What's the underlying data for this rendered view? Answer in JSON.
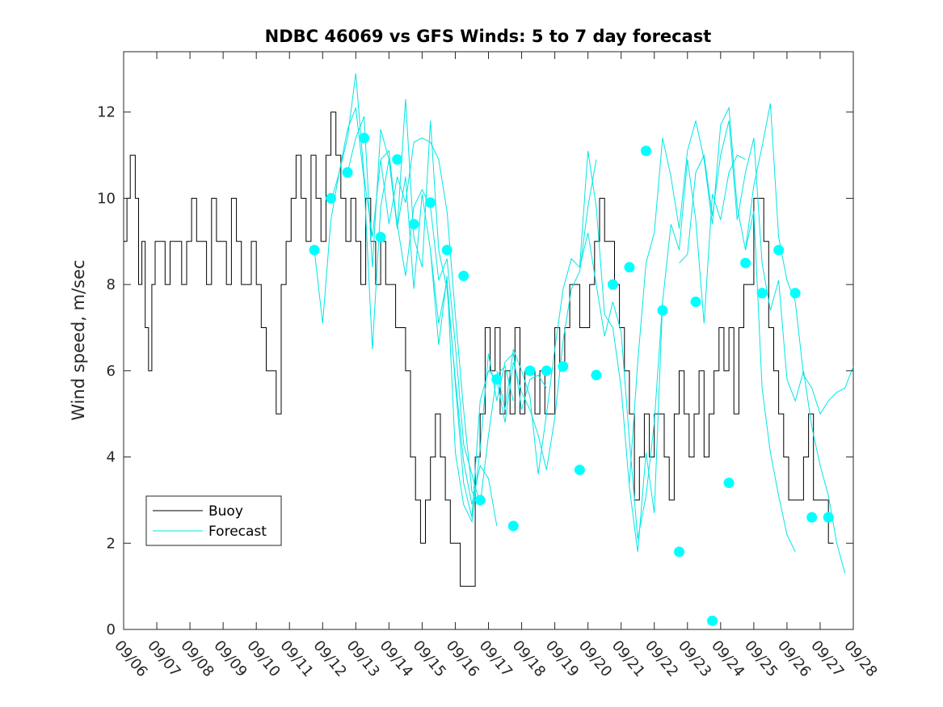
{
  "chart_data": {
    "type": "line",
    "title": "NDBC 46069 vs GFS Winds: 5 to 7 day forecast",
    "xlabel": "",
    "ylabel": "Wind speed, m/sec",
    "xlim": [
      0,
      22
    ],
    "ylim": [
      0,
      13.4
    ],
    "x_ticks": [
      0,
      1,
      2,
      3,
      4,
      5,
      6,
      7,
      8,
      9,
      10,
      11,
      12,
      13,
      14,
      15,
      16,
      17,
      18,
      19,
      20,
      21,
      22
    ],
    "x_tick_labels": [
      "09/06",
      "09/07",
      "09/08",
      "09/09",
      "09/10",
      "09/11",
      "09/12",
      "09/13",
      "09/14",
      "09/15",
      "09/16",
      "09/17",
      "09/18",
      "09/19",
      "09/20",
      "09/21",
      "09/22",
      "09/23",
      "09/24",
      "09/25",
      "09/26",
      "09/27",
      "09/28"
    ],
    "y_ticks": [
      0,
      2,
      4,
      6,
      8,
      10,
      12
    ],
    "y_tick_labels": [
      "0",
      "2",
      "4",
      "6",
      "8",
      "10",
      "12"
    ],
    "grid": false,
    "legend": {
      "position": "lower-left",
      "entries": [
        "Buoy",
        "Forecast"
      ]
    },
    "colors": {
      "buoy": "#000000",
      "forecast": "#00e5e5",
      "marker": "#00ffff",
      "axis": "#262626"
    },
    "series": [
      {
        "name": "Buoy",
        "x": [
          0,
          0.1,
          0.2,
          0.35,
          0.45,
          0.55,
          0.65,
          0.75,
          0.85,
          0.95,
          1.1,
          1.25,
          1.4,
          1.6,
          1.75,
          1.9,
          2.05,
          2.2,
          2.35,
          2.5,
          2.65,
          2.8,
          2.95,
          3.1,
          3.25,
          3.4,
          3.55,
          3.7,
          3.85,
          4.0,
          4.15,
          4.3,
          4.45,
          4.6,
          4.75,
          4.9,
          5.05,
          5.2,
          5.35,
          5.5,
          5.65,
          5.8,
          5.95,
          6.1,
          6.25,
          6.4,
          6.55,
          6.7,
          6.85,
          7.0,
          7.15,
          7.3,
          7.45,
          7.6,
          7.75,
          7.9,
          8.05,
          8.2,
          8.35,
          8.5,
          8.65,
          8.8,
          8.95,
          9.1,
          9.25,
          9.4,
          9.55,
          9.7,
          9.85,
          10.0,
          10.15,
          10.3,
          10.45,
          10.6,
          10.75,
          10.9,
          11.05,
          11.2,
          11.35,
          11.5,
          11.65,
          11.8,
          11.95,
          12.1,
          12.25,
          12.4,
          12.55,
          12.7,
          12.85,
          13.0,
          13.15,
          13.3,
          13.45,
          13.6,
          13.75,
          13.9,
          14.05,
          14.2,
          14.35,
          14.5,
          14.65,
          14.8,
          14.95,
          15.1,
          15.25,
          15.4,
          15.55,
          15.7,
          15.85,
          16.0,
          16.15,
          16.3,
          16.45,
          16.6,
          16.75,
          16.9,
          17.05,
          17.2,
          17.35,
          17.5,
          17.65,
          17.8,
          17.95,
          18.1,
          18.25,
          18.4,
          18.55,
          18.7,
          18.85,
          19.0,
          19.15,
          19.3,
          19.45,
          19.6,
          19.75,
          19.9,
          20.05,
          20.2,
          20.35,
          20.5,
          20.65,
          20.8,
          20.95,
          21.1,
          21.25,
          21.4
        ],
        "values": [
          9,
          10,
          11,
          10,
          8,
          9,
          7,
          6,
          8,
          9,
          9,
          8,
          9,
          9,
          8,
          9,
          10,
          9,
          9,
          8,
          10,
          9,
          9,
          8,
          10,
          9,
          8,
          8,
          9,
          8,
          7,
          6,
          6,
          5,
          8,
          9,
          10,
          11,
          10,
          9,
          11,
          10,
          9,
          11,
          12,
          11,
          10,
          9,
          10,
          9,
          8,
          10,
          9,
          8,
          9,
          8,
          8,
          7,
          7,
          6,
          4,
          3,
          2,
          3,
          4,
          5,
          4,
          3,
          2,
          2,
          1,
          1,
          1,
          4,
          5,
          7,
          6,
          7,
          5,
          6,
          5,
          7,
          5,
          6,
          6,
          5,
          6,
          5,
          5,
          7,
          6,
          7,
          8,
          8,
          7,
          7,
          8,
          9,
          10,
          9,
          9,
          8,
          7,
          6,
          5,
          3,
          4,
          5,
          4,
          5,
          5,
          4,
          3,
          5,
          6,
          5,
          4,
          5,
          6,
          4,
          5,
          6,
          7,
          6,
          7,
          5,
          7,
          8,
          8,
          10,
          10,
          9,
          7,
          6,
          5,
          4,
          3,
          3,
          3,
          4,
          5,
          3,
          3,
          3,
          2,
          2
        ]
      },
      {
        "name": "Forecast",
        "runs": [
          {
            "x": [
              5.75,
              6.0,
              6.25,
              6.5,
              6.75,
              7.0,
              7.25,
              7.5,
              7.75,
              8.0,
              8.25,
              8.5,
              8.75,
              9.0,
              9.25,
              9.5,
              9.75,
              10.0,
              10.25,
              10.5,
              10.75
            ],
            "values": [
              8.8,
              7.1,
              9.5,
              10.6,
              11.4,
              12.9,
              10.5,
              9.1,
              10.9,
              9.4,
              10.5,
              9.9,
              11.3,
              11.4,
              11.3,
              10.9,
              9.7,
              7.3,
              5.1,
              3.2,
              2.9
            ]
          },
          {
            "x": [
              6.25,
              6.5,
              6.75,
              7.0,
              7.25,
              7.5,
              7.75,
              8.0,
              8.25,
              8.5,
              8.75,
              9.0,
              9.25,
              9.5,
              9.75,
              10.0,
              10.25,
              10.5,
              10.75,
              11.0,
              11.25
            ],
            "values": [
              9.9,
              10.6,
              11.6,
              12.1,
              10.4,
              6.5,
              9.8,
              10.9,
              9.3,
              12.3,
              9.1,
              8.4,
              11.8,
              8.8,
              7.9,
              5.8,
              3.9,
              2.9,
              3.8,
              3.5,
              2.4
            ]
          },
          {
            "x": [
              6.75,
              7.0,
              7.25,
              7.5,
              7.75,
              8.0,
              8.25,
              8.5,
              8.75,
              9.0,
              9.25,
              9.5,
              9.75,
              10.0,
              10.25,
              10.5,
              10.75,
              11.0,
              11.25,
              11.5,
              11.75
            ],
            "values": [
              10.6,
              11.4,
              11.9,
              8.4,
              11.6,
              10.9,
              9.4,
              8.2,
              9.8,
              10.2,
              9.8,
              8.1,
              8.6,
              6.6,
              4.3,
              3.6,
              2.9,
              4.5,
              5.9,
              6.1,
              5.3
            ]
          },
          {
            "x": [
              7.75,
              8.0,
              8.25,
              8.5,
              8.75,
              9.0,
              9.25,
              9.5,
              9.75,
              10.0,
              10.25,
              10.5,
              10.75,
              11.0,
              11.25,
              11.5,
              11.75,
              12.0,
              12.25,
              12.5,
              12.75
            ],
            "values": [
              10.9,
              11.1,
              9.3,
              10.5,
              7.9,
              10.1,
              8.8,
              6.6,
              8.2,
              4.1,
              2.9,
              2.5,
              4.2,
              6.4,
              5.3,
              6.2,
              6.4,
              5.1,
              5.8,
              5.9,
              5.6
            ]
          },
          {
            "x": [
              9.25,
              9.5,
              9.75,
              10.0,
              10.25,
              10.5,
              10.75,
              11.0,
              11.25,
              11.5,
              11.75,
              12.0,
              12.25,
              12.5,
              12.75,
              13.0,
              13.25,
              13.5,
              13.75,
              14.0,
              14.25
            ],
            "values": [
              8.8,
              7.1,
              8.1,
              5.7,
              3.4,
              2.6,
              5.3,
              6.0,
              5.8,
              4.8,
              6.2,
              5.5,
              5.1,
              4.5,
              3.7,
              4.9,
              6.7,
              7.9,
              8.3,
              9.8,
              10.9
            ]
          },
          {
            "x": [
              11.25,
              11.5,
              11.75,
              12.0,
              12.25,
              12.5,
              12.75,
              13.0,
              13.25,
              13.5,
              13.75,
              14.0,
              14.25,
              14.5,
              14.75,
              15.0,
              15.25,
              15.5,
              15.75,
              16.0,
              16.25
            ],
            "values": [
              6.0,
              5.1,
              6.5,
              6.0,
              5.4,
              3.6,
              5.0,
              6.5,
              7.9,
              8.6,
              8.4,
              9.2,
              8.0,
              6.8,
              7.6,
              6.9,
              4.4,
              2.1,
              3.1,
              4.8,
              7.6
            ]
          },
          {
            "x": [
              13.75,
              14.0,
              14.25,
              14.5,
              14.75,
              15.0,
              15.25,
              15.5,
              15.75,
              16.0,
              16.25,
              16.5,
              16.75,
              17.0,
              17.25,
              17.5,
              17.75,
              18.0,
              18.25,
              18.5,
              18.75
            ],
            "values": [
              8.4,
              11.1,
              9.8,
              7.3,
              7.0,
              5.6,
              3.3,
              1.8,
              4.1,
              2.7,
              7.6,
              9.4,
              8.8,
              10.9,
              9.5,
              7.1,
              10.1,
              9.5,
              10.6,
              11.0,
              10.9
            ]
          },
          {
            "x": [
              15.25,
              15.5,
              15.75,
              16.0,
              16.25,
              16.5,
              16.75,
              17.0,
              17.25,
              17.5,
              17.75,
              18.0,
              18.25,
              18.5,
              18.75,
              19.0,
              19.25,
              19.5,
              19.75,
              20.0,
              20.25
            ],
            "values": [
              3.4,
              6.2,
              8.5,
              9.2,
              11.4,
              10.5,
              9.3,
              11.1,
              11.8,
              10.9,
              9.4,
              11.7,
              12.1,
              9.8,
              8.8,
              9.7,
              5.6,
              4.1,
              3.1,
              2.2,
              1.8
            ]
          },
          {
            "x": [
              16.75,
              17.0,
              17.25,
              17.5,
              17.75,
              18.0,
              18.25,
              18.5,
              18.75,
              19.0,
              19.25,
              19.5,
              19.75,
              20.0,
              20.25,
              20.5,
              20.75,
              21.0,
              21.25,
              21.5,
              21.75
            ],
            "values": [
              8.5,
              8.7,
              10.6,
              11.0,
              9.6,
              11.0,
              11.8,
              9.5,
              10.6,
              11.4,
              8.5,
              7.4,
              8.1,
              5.8,
              5.3,
              6.0,
              4.7,
              3.8,
              3.1,
              2.0,
              1.3
            ]
          },
          {
            "x": [
              18.75,
              19.0,
              19.25,
              19.5,
              19.75,
              20.0,
              20.25,
              20.5,
              20.75,
              21.0,
              21.25,
              21.5,
              21.75,
              22.0
            ],
            "values": [
              8.8,
              10.3,
              11.2,
              12.2,
              9.1,
              8.1,
              7.6,
              5.9,
              5.6,
              5.0,
              5.3,
              5.5,
              5.6,
              6.1
            ]
          }
        ],
        "markers": {
          "x": [
            5.75,
            6.25,
            6.75,
            7.25,
            7.75,
            8.25,
            8.75,
            9.25,
            9.75,
            10.25,
            10.75,
            11.25,
            11.75,
            12.25,
            12.75,
            13.25,
            13.75,
            14.25,
            14.75,
            15.25,
            15.75,
            16.25,
            16.75,
            17.25,
            17.75,
            18.25,
            18.75,
            19.25,
            19.75,
            20.25,
            20.75,
            21.25
          ],
          "values": [
            8.8,
            10.0,
            10.6,
            11.4,
            9.1,
            10.9,
            9.4,
            9.9,
            8.8,
            8.2,
            3.0,
            5.8,
            2.4,
            6.0,
            6.0,
            6.1,
            3.7,
            5.9,
            8.0,
            8.4,
            11.1,
            7.4,
            1.8,
            7.6,
            0.2,
            3.4,
            8.5,
            7.8,
            8.8,
            7.8,
            2.6,
            2.6
          ]
        }
      }
    ]
  }
}
